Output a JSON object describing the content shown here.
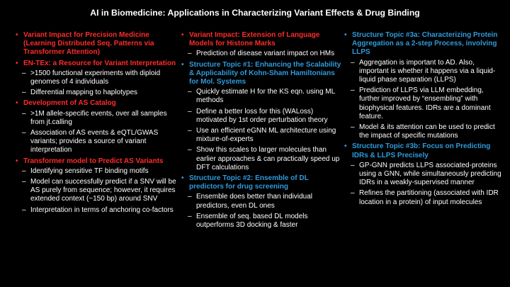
{
  "slide": {
    "title": "AI in Biomedicine: Applications in Characterizing Variant Effects & Drug Binding",
    "colors": {
      "red": "#ff2b2b",
      "blue": "#2f9bdc",
      "text": "#ffffff",
      "background": "#000000"
    },
    "columns": [
      {
        "topics": [
          {
            "heading": "Variant Impact for Precision Medicine (Learning Distributed Seq. Patterns via Transformer Attention)",
            "color": "red",
            "items": []
          },
          {
            "heading": "EN-TEx: a Resource for Variant Interpretation",
            "color": "red",
            "items": [
              ">1500 functional experiments with diploid genomes of 4 individuals",
              "Differential mapping to haplotypes"
            ]
          },
          {
            "heading": "Development of AS Catalog",
            "color": "red",
            "items": [
              ">1M allele-specific events, over all samples from jt.calling",
              "Association of AS events & eQTL/GWAS variants; provides a source of variant interpretation"
            ]
          },
          {
            "heading": "Transformer model to Predict AS Variants",
            "color": "red",
            "items": [
              "Identifying sensitive TF binding motifs",
              "Model can successfully predict if a SNV will be AS purely from sequence; however, it requires extended context (~150 bp) around SNV",
              "Interpretation in terms of anchoring co-factors"
            ]
          }
        ]
      },
      {
        "topics": [
          {
            "heading": "Variant Impact: Extension of Language Models for Histone Marks",
            "color": "red",
            "items": [
              "Prediction of disease variant impact on HMs"
            ]
          },
          {
            "heading": "Structure Topic #1: Enhancing the Scalability & Applicability of Kohn-Sham Hamiltonians for Mol. Systems",
            "color": "blue",
            "items": [
              "Quickly estimate H for the KS eqn. using ML methods",
              "Define a better loss for this (WALoss) motivated by 1st order perturbation theory",
              "Use an efficient eGNN ML architecture using mixture-of-experts",
              "Show this scales to larger molecules than earlier approaches & can practically speed up DFT calculations"
            ]
          },
          {
            "heading": "Structure Topic #2: Ensemble of DL predictors for drug screening",
            "color": "blue",
            "items": [
              "Ensemble does better than individual predictors, even DL ones",
              "Ensemble of seq. based DL models outperforms 3D docking & faster"
            ]
          }
        ]
      },
      {
        "topics": [
          {
            "heading": "Structure Topic #3a: Characterizing Protein Aggregation as a 2-step Process, involving LLPS",
            "color": "blue",
            "items": [
              "Aggregation is important to AD. Also, important is whether it happens via a liquid-liquid phase separation (LLPS)",
              "Prediction of LLPS via LLM embedding, further improved by “ensembling” with biophysical features. IDRs are a dominant feature.",
              "Model & its attention can be used to predict the impact of specific mutations"
            ]
          },
          {
            "heading": "Structure Topic #3b: Focus on Predicting IDRs & LLPS Precisely",
            "color": "blue",
            "items": [
              "GP-GNN predicts LLPS associated-proteins using a GNN, while simultaneously predicting IDRs in a weakly-supervised manner",
              "Refines the partitioning (associated with IDR location in a protein) of input molecules"
            ]
          }
        ]
      }
    ]
  }
}
